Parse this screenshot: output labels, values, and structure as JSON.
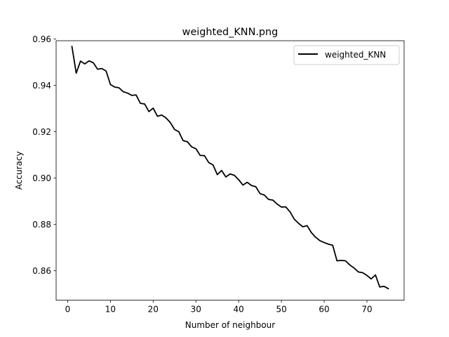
{
  "chart_data": {
    "type": "line",
    "title": "weighted_KNN.png",
    "xlabel": "Number of neighbour",
    "ylabel": "Accuracy",
    "xlim": [
      -2.7,
      78.7
    ],
    "ylim": [
      0.8473,
      0.9593
    ],
    "xticks": [
      0,
      10,
      20,
      30,
      40,
      50,
      60,
      70
    ],
    "yticks": [
      0.86,
      0.88,
      0.9,
      0.92,
      0.94,
      0.96
    ],
    "ytick_labels": [
      "0.86",
      "0.88",
      "0.90",
      "0.92",
      "0.94",
      "0.96"
    ],
    "legend_position": "upper right",
    "series": [
      {
        "name": "weighted_KNN",
        "color": "#000000",
        "x": [
          1,
          2,
          3,
          4,
          5,
          6,
          7,
          8,
          9,
          10,
          11,
          12,
          13,
          14,
          15,
          16,
          17,
          18,
          19,
          20,
          21,
          22,
          23,
          24,
          25,
          26,
          27,
          28,
          29,
          30,
          31,
          32,
          33,
          34,
          35,
          36,
          37,
          38,
          39,
          40,
          41,
          42,
          43,
          44,
          45,
          46,
          47,
          48,
          49,
          50,
          51,
          52,
          53,
          54,
          55,
          56,
          57,
          58,
          59,
          60,
          61,
          62,
          63,
          64,
          65,
          66,
          67,
          68,
          69,
          70,
          71,
          72,
          73,
          74,
          75
        ],
        "values": [
          0.9568,
          0.9453,
          0.9505,
          0.9493,
          0.9506,
          0.9498,
          0.947,
          0.9473,
          0.9462,
          0.9404,
          0.9393,
          0.939,
          0.9373,
          0.9367,
          0.9357,
          0.9359,
          0.9323,
          0.932,
          0.9287,
          0.9302,
          0.9267,
          0.9272,
          0.926,
          0.924,
          0.921,
          0.92,
          0.9162,
          0.9157,
          0.9135,
          0.9127,
          0.9098,
          0.9097,
          0.9067,
          0.9057,
          0.9015,
          0.9033,
          0.9005,
          0.9018,
          0.9012,
          0.8993,
          0.897,
          0.8982,
          0.8968,
          0.8963,
          0.8933,
          0.8927,
          0.8908,
          0.8905,
          0.8888,
          0.8875,
          0.8876,
          0.8855,
          0.8823,
          0.8805,
          0.879,
          0.8795,
          0.8765,
          0.8745,
          0.873,
          0.8722,
          0.8715,
          0.871,
          0.8643,
          0.8645,
          0.8643,
          0.8625,
          0.8612,
          0.8595,
          0.8592,
          0.858,
          0.8565,
          0.8582,
          0.853,
          0.8533,
          0.8523
        ]
      }
    ]
  }
}
